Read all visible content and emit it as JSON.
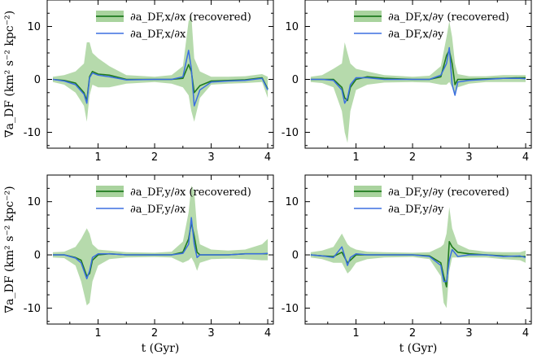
{
  "figure": {
    "ylabel": "∇a_DF (km² s⁻² kpc⁻²)",
    "xlabel": "t (Gyr)",
    "xlim": [
      0.1,
      4.1
    ],
    "ylim": [
      -13,
      15
    ],
    "xticks": [
      1,
      2,
      3,
      4
    ],
    "yticks": [
      -10,
      0,
      10
    ],
    "ytick_labels": [
      "-10",
      "0",
      "10"
    ],
    "grid": false,
    "colors": {
      "recovered": "#1f7a1f",
      "band": "#a9d39e",
      "true": "#3b6fe0"
    }
  },
  "chart_data": [
    {
      "type": "line",
      "legend": [
        "∂a_DF,x/∂x (recovered)",
        "∂a_DF,x/∂x"
      ],
      "series": [
        {
          "name": "∂a_DF,x/∂x (recovered)",
          "role": "recovered",
          "x": [
            0.2,
            0.4,
            0.6,
            0.75,
            0.8,
            0.85,
            0.9,
            1.0,
            1.2,
            1.5,
            2.0,
            2.3,
            2.5,
            2.6,
            2.65,
            2.7,
            2.8,
            3.0,
            3.3,
            3.6,
            3.9,
            4.0
          ],
          "y": [
            0,
            -0.2,
            -0.7,
            -2.5,
            -4,
            0.5,
            1.5,
            1,
            0.8,
            0,
            0,
            0,
            0.2,
            2.8,
            1.5,
            -2.5,
            -1.2,
            -0.3,
            -0.2,
            -0.1,
            0.3,
            -1.8
          ]
        },
        {
          "name": "∂a_DF,x/∂x",
          "role": "true",
          "x": [
            0.2,
            0.4,
            0.6,
            0.75,
            0.8,
            0.85,
            0.9,
            1.0,
            1.2,
            1.5,
            2.0,
            2.3,
            2.5,
            2.6,
            2.65,
            2.7,
            2.8,
            3.0,
            3.3,
            3.6,
            3.9,
            4.0
          ],
          "y": [
            0,
            -0.3,
            -1,
            -2.8,
            -4.5,
            0.3,
            1.2,
            0.8,
            0.5,
            -0.1,
            0,
            0,
            0.5,
            5.5,
            2,
            -5,
            -2,
            -0.5,
            -0.3,
            -0.2,
            0.2,
            -2
          ]
        },
        {
          "name": "",
          "role": "band",
          "x": [
            0.2,
            0.4,
            0.6,
            0.75,
            0.8,
            0.85,
            0.9,
            1.0,
            1.2,
            1.5,
            2.0,
            2.3,
            2.5,
            2.6,
            2.65,
            2.7,
            2.8,
            3.0,
            3.3,
            3.6,
            3.9,
            4.0
          ],
          "lower": [
            -0.5,
            -1,
            -2.5,
            -5,
            -8,
            -3,
            -1,
            -1.5,
            -1.5,
            -0.8,
            -0.5,
            -0.8,
            -1.5,
            -3,
            -6,
            -8,
            -3.5,
            -1,
            -0.8,
            -0.7,
            -0.5,
            -3.5
          ],
          "upper": [
            0.5,
            0.8,
            1.5,
            3,
            7,
            7,
            5,
            4,
            2.5,
            0.8,
            0.5,
            0.8,
            2.5,
            11,
            12,
            4,
            1.5,
            0.5,
            0.5,
            0.6,
            1,
            0.5
          ]
        }
      ]
    },
    {
      "type": "line",
      "legend": [
        "∂a_DF,x/∂y (recovered)",
        "∂a_DF,x/∂y"
      ],
      "series": [
        {
          "name": "∂a_DF,x/∂y (recovered)",
          "role": "recovered",
          "x": [
            0.2,
            0.4,
            0.6,
            0.75,
            0.8,
            0.85,
            0.9,
            1.0,
            1.2,
            1.5,
            2.0,
            2.3,
            2.5,
            2.6,
            2.65,
            2.7,
            2.75,
            2.8,
            3.0,
            3.3,
            3.6,
            3.9,
            4.0
          ],
          "y": [
            0,
            0,
            0,
            -1.5,
            -3.5,
            -4,
            -1.5,
            0,
            0.5,
            0.2,
            0,
            0,
            0.5,
            4.5,
            5.5,
            3,
            -1,
            0,
            0,
            0.1,
            0.2,
            0.3,
            0.3
          ]
        },
        {
          "name": "∂a_DF,x/∂y",
          "role": "true",
          "x": [
            0.2,
            0.4,
            0.6,
            0.75,
            0.8,
            0.85,
            0.9,
            1.0,
            1.2,
            1.5,
            2.0,
            2.3,
            2.5,
            2.6,
            2.65,
            2.7,
            2.75,
            2.8,
            3.0,
            3.3,
            3.6,
            3.9,
            4.0
          ],
          "y": [
            0,
            0,
            -0.2,
            -2,
            -4.5,
            -3.5,
            -1,
            0.3,
            0.3,
            0,
            0,
            0,
            0.8,
            3,
            6,
            -1,
            -3,
            -0.5,
            -0.2,
            0,
            0.2,
            0.2,
            0.1
          ]
        },
        {
          "name": "",
          "role": "band",
          "x": [
            0.2,
            0.4,
            0.6,
            0.75,
            0.8,
            0.85,
            0.9,
            1.0,
            1.2,
            1.5,
            2.0,
            2.3,
            2.5,
            2.6,
            2.65,
            2.7,
            2.75,
            2.8,
            3.0,
            3.3,
            3.6,
            3.9,
            4.0
          ],
          "lower": [
            -0.5,
            -0.7,
            -1.5,
            -6,
            -10,
            -12,
            -6,
            -2,
            -1,
            -0.6,
            -0.5,
            -0.6,
            -1,
            -1,
            -0.5,
            -1.5,
            -3,
            -1.5,
            -0.8,
            -0.5,
            -0.5,
            -0.5,
            -0.5
          ],
          "upper": [
            0.5,
            0.8,
            2,
            3,
            7,
            5,
            3,
            2,
            1.5,
            0.8,
            0.5,
            0.7,
            2.5,
            8,
            11,
            8,
            3,
            1,
            0.6,
            0.6,
            0.8,
            0.8,
            0.8
          ]
        }
      ]
    },
    {
      "type": "line",
      "legend": [
        "∂a_DF,y/∂x (recovered)",
        "∂a_DF,y/∂x"
      ],
      "series": [
        {
          "name": "∂a_DF,y/∂x (recovered)",
          "role": "recovered",
          "x": [
            0.2,
            0.4,
            0.6,
            0.7,
            0.8,
            0.85,
            0.9,
            1.0,
            1.2,
            1.5,
            2.0,
            2.3,
            2.5,
            2.6,
            2.65,
            2.7,
            2.75,
            2.8,
            3.0,
            3.3,
            3.6,
            3.9,
            4.0
          ],
          "y": [
            0,
            0,
            -0.5,
            -1,
            -4,
            -3.5,
            -1,
            0,
            0.2,
            0,
            0,
            0,
            0.5,
            3,
            6,
            3.5,
            0.5,
            0,
            0,
            0,
            0.2,
            0.2,
            0.2
          ]
        },
        {
          "name": "∂a_DF,y/∂x",
          "role": "true",
          "x": [
            0.2,
            0.4,
            0.6,
            0.7,
            0.8,
            0.85,
            0.9,
            1.0,
            1.2,
            1.5,
            2.0,
            2.3,
            2.5,
            2.6,
            2.65,
            2.7,
            2.75,
            2.8,
            3.0,
            3.3,
            3.6,
            3.9,
            4.0
          ],
          "y": [
            0,
            0,
            -0.6,
            -1.5,
            -4.5,
            -3,
            -0.5,
            0.2,
            0.2,
            0,
            0,
            0,
            0.3,
            2,
            7,
            2,
            -0.5,
            0,
            0,
            0,
            0.2,
            0.2,
            0.3
          ]
        },
        {
          "name": "",
          "role": "band",
          "x": [
            0.2,
            0.4,
            0.6,
            0.7,
            0.8,
            0.85,
            0.9,
            1.0,
            1.2,
            1.5,
            2.0,
            2.3,
            2.5,
            2.6,
            2.65,
            2.7,
            2.75,
            2.8,
            3.0,
            3.3,
            3.6,
            3.9,
            4.0
          ],
          "lower": [
            -0.5,
            -0.6,
            -2,
            -5,
            -9.5,
            -9,
            -5,
            -2,
            -0.8,
            -0.5,
            -0.4,
            -0.5,
            -1.5,
            -1,
            -0.5,
            -1.5,
            -3,
            -1.5,
            -0.8,
            -0.7,
            -0.8,
            -1,
            -1
          ],
          "upper": [
            0.5,
            0.6,
            1.5,
            3,
            5,
            4,
            2,
            1,
            0.8,
            0.5,
            0.4,
            0.6,
            2.5,
            8,
            13,
            12,
            5,
            2,
            1,
            0.8,
            1,
            2,
            3
          ]
        }
      ]
    },
    {
      "type": "line",
      "legend": [
        "∂a_DF,y/∂y (recovered)",
        "∂a_DF,y/∂y"
      ],
      "series": [
        {
          "name": "∂a_DF,y/∂y (recovered)",
          "role": "recovered",
          "x": [
            0.2,
            0.4,
            0.6,
            0.75,
            0.85,
            0.9,
            1.0,
            1.2,
            1.5,
            2.0,
            2.3,
            2.5,
            2.55,
            2.6,
            2.65,
            2.7,
            2.8,
            3.0,
            3.3,
            3.6,
            3.9,
            4.0
          ],
          "y": [
            0,
            -0.2,
            -0.3,
            0.5,
            -1.5,
            -1,
            0,
            0,
            0,
            0,
            -0.2,
            -1.5,
            -4,
            -6,
            2.5,
            1.5,
            0.5,
            0.2,
            0,
            -0.2,
            -0.3,
            -0.3
          ]
        },
        {
          "name": "∂a_DF,y/∂y",
          "role": "true",
          "x": [
            0.2,
            0.4,
            0.6,
            0.75,
            0.85,
            0.9,
            1.0,
            1.2,
            1.5,
            2.0,
            2.3,
            2.5,
            2.55,
            2.6,
            2.65,
            2.7,
            2.8,
            3.0,
            3.3,
            3.6,
            3.9,
            4.0
          ],
          "y": [
            0,
            -0.2,
            -0.5,
            1.5,
            -2,
            -0.5,
            0.2,
            0,
            0,
            0,
            -0.3,
            -2,
            -5,
            -5,
            -1,
            1,
            -0.3,
            0,
            0,
            -0.3,
            -0.2,
            -0.5
          ]
        },
        {
          "name": "",
          "role": "band",
          "x": [
            0.2,
            0.4,
            0.6,
            0.75,
            0.85,
            0.9,
            1.0,
            1.2,
            1.5,
            2.0,
            2.3,
            2.5,
            2.55,
            2.6,
            2.65,
            2.7,
            2.8,
            3.0,
            3.3,
            3.6,
            3.9,
            4.0
          ],
          "lower": [
            -0.5,
            -0.8,
            -1.5,
            -1.5,
            -3.5,
            -3,
            -1.5,
            -0.8,
            -0.5,
            -0.4,
            -0.8,
            -4,
            -9,
            -10,
            -3,
            -0.5,
            -0.5,
            -0.5,
            -0.5,
            -0.8,
            -1,
            -1.5
          ],
          "upper": [
            0.5,
            0.8,
            1.5,
            4,
            2,
            1.5,
            1,
            0.6,
            0.5,
            0.4,
            0.5,
            1.5,
            2,
            4,
            9,
            5,
            2,
            1,
            0.6,
            0.5,
            0.5,
            0.8
          ]
        }
      ]
    }
  ]
}
